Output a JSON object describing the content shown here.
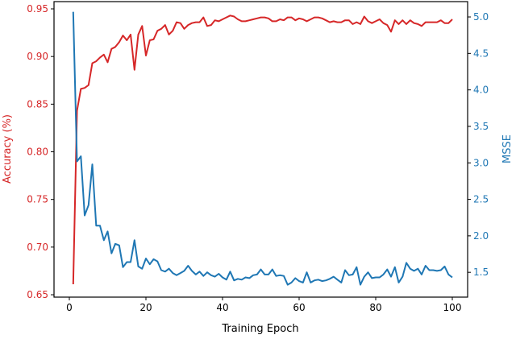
{
  "chart_data": {
    "type": "line",
    "xlabel": "Training Epoch",
    "ylabel_left": "Accuracy (%)",
    "ylabel_right": "MSSE",
    "xlim": [
      -4,
      104
    ],
    "ylim_left": [
      0.6475,
      0.9576
    ],
    "ylim_right": [
      1.16,
      5.21
    ],
    "grid": false,
    "x_ticks": [
      0,
      20,
      40,
      60,
      80,
      100
    ],
    "x_tick_labels": [
      "0",
      "20",
      "40",
      "60",
      "80",
      "100"
    ],
    "y_left_ticks": [
      0.65,
      0.7,
      0.75,
      0.8,
      0.85,
      0.9,
      0.95
    ],
    "y_left_tick_labels": [
      "0.65",
      "0.70",
      "0.75",
      "0.80",
      "0.85",
      "0.90",
      "0.95"
    ],
    "y_right_ticks": [
      1.5,
      2.0,
      2.5,
      3.0,
      3.5,
      4.0,
      4.5,
      5.0
    ],
    "y_right_tick_labels": [
      "1.5",
      "2.0",
      "2.5",
      "3.0",
      "3.5",
      "4.0",
      "4.5",
      "5.0"
    ],
    "colors": {
      "accuracy": "#d62728",
      "msse": "#1f77b4"
    },
    "x_start": 1,
    "series": [
      {
        "axis": "left",
        "color": "#d62728",
        "values": [
          0.661,
          0.843,
          0.866,
          0.867,
          0.87,
          0.893,
          0.895,
          0.899,
          0.902,
          0.894,
          0.908,
          0.91,
          0.915,
          0.922,
          0.917,
          0.923,
          0.886,
          0.923,
          0.932,
          0.901,
          0.917,
          0.918,
          0.927,
          0.929,
          0.933,
          0.923,
          0.927,
          0.936,
          0.935,
          0.929,
          0.933,
          0.935,
          0.936,
          0.936,
          0.941,
          0.932,
          0.933,
          0.938,
          0.937,
          0.939,
          0.941,
          0.943,
          0.942,
          0.939,
          0.937,
          0.937,
          0.938,
          0.939,
          0.94,
          0.941,
          0.941,
          0.94,
          0.937,
          0.937,
          0.939,
          0.938,
          0.941,
          0.941,
          0.938,
          0.94,
          0.939,
          0.937,
          0.939,
          0.941,
          0.941,
          0.94,
          0.938,
          0.936,
          0.937,
          0.936,
          0.936,
          0.938,
          0.938,
          0.934,
          0.936,
          0.934,
          0.942,
          0.937,
          0.935,
          0.937,
          0.939,
          0.935,
          0.933,
          0.926,
          0.938,
          0.934,
          0.938,
          0.934,
          0.938,
          0.935,
          0.934,
          0.932,
          0.936,
          0.936,
          0.936,
          0.936,
          0.938,
          0.935,
          0.935,
          0.939
        ]
      },
      {
        "axis": "right",
        "color": "#1f77b4",
        "values": [
          5.07,
          3.02,
          3.09,
          2.28,
          2.42,
          2.98,
          2.14,
          2.14,
          1.94,
          2.06,
          1.76,
          1.89,
          1.87,
          1.57,
          1.64,
          1.64,
          1.94,
          1.58,
          1.55,
          1.69,
          1.61,
          1.68,
          1.65,
          1.53,
          1.51,
          1.55,
          1.49,
          1.46,
          1.49,
          1.52,
          1.59,
          1.52,
          1.47,
          1.51,
          1.45,
          1.5,
          1.46,
          1.44,
          1.48,
          1.43,
          1.4,
          1.51,
          1.39,
          1.41,
          1.4,
          1.43,
          1.42,
          1.46,
          1.47,
          1.54,
          1.47,
          1.47,
          1.54,
          1.45,
          1.46,
          1.45,
          1.33,
          1.36,
          1.42,
          1.38,
          1.36,
          1.5,
          1.36,
          1.39,
          1.4,
          1.38,
          1.39,
          1.41,
          1.44,
          1.4,
          1.36,
          1.53,
          1.46,
          1.47,
          1.57,
          1.33,
          1.44,
          1.5,
          1.42,
          1.43,
          1.43,
          1.47,
          1.54,
          1.44,
          1.57,
          1.36,
          1.44,
          1.63,
          1.55,
          1.52,
          1.55,
          1.47,
          1.59,
          1.53,
          1.53,
          1.52,
          1.53,
          1.58,
          1.47,
          1.43
        ]
      }
    ]
  }
}
